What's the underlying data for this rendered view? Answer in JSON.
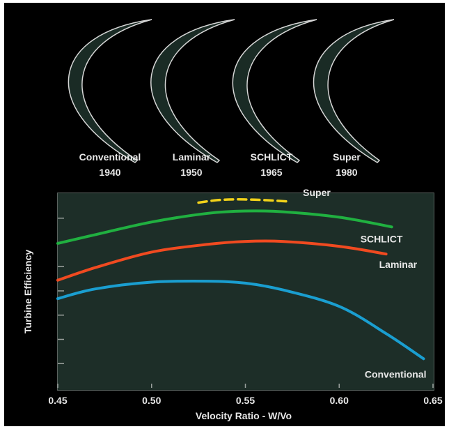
{
  "blades": [
    {
      "name": "Conventional",
      "year": "1940"
    },
    {
      "name": "Laminar",
      "year": "1950"
    },
    {
      "name": "SCHLICT",
      "year": "1965"
    },
    {
      "name": "Super",
      "year": "1980"
    }
  ],
  "chart_data": {
    "type": "line",
    "xlabel": "Velocity Ratio - W/Vo",
    "ylabel": "Turbine Efficiency",
    "xlim": [
      0.45,
      0.65
    ],
    "xticks": [
      "0.45",
      "0.50",
      "0.55",
      "0.60",
      "0.65"
    ],
    "y_tick_labels_shown": false,
    "y_tick_count": 7,
    "grid": false,
    "series": [
      {
        "name": "Super",
        "color": "#f2d21a",
        "style": "dashed",
        "x": [
          0.525,
          0.535,
          0.545,
          0.555,
          0.565,
          0.574
        ],
        "y": [
          0.955,
          0.968,
          0.972,
          0.97,
          0.966,
          0.96
        ]
      },
      {
        "name": "SCHLICT",
        "color": "#20b040",
        "style": "solid",
        "x": [
          0.45,
          0.47,
          0.5,
          0.53,
          0.55,
          0.57,
          0.6,
          0.628
        ],
        "y": [
          0.745,
          0.79,
          0.855,
          0.9,
          0.912,
          0.908,
          0.88,
          0.83
        ]
      },
      {
        "name": "Laminar",
        "color": "#f04a20",
        "style": "solid",
        "x": [
          0.45,
          0.47,
          0.5,
          0.53,
          0.55,
          0.57,
          0.6,
          0.625
        ],
        "y": [
          0.555,
          0.62,
          0.7,
          0.74,
          0.755,
          0.755,
          0.73,
          0.69
        ]
      },
      {
        "name": "Conventional",
        "color": "#1a9ed0",
        "style": "solid",
        "x": [
          0.45,
          0.47,
          0.5,
          0.53,
          0.55,
          0.57,
          0.6,
          0.625,
          0.645
        ],
        "y": [
          0.46,
          0.51,
          0.545,
          0.55,
          0.54,
          0.505,
          0.42,
          0.28,
          0.15
        ]
      }
    ]
  }
}
